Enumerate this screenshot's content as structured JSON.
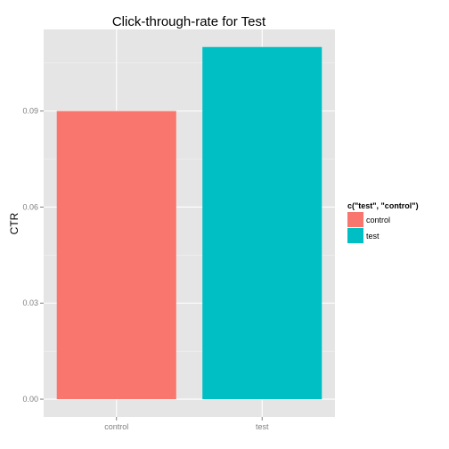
{
  "chart_data": {
    "type": "bar",
    "title": "Click-through-rate for Test",
    "xlabel": "",
    "ylabel": "CTR",
    "categories": [
      "control",
      "test"
    ],
    "values": [
      0.09,
      0.11
    ],
    "ylim": [
      -0.00555,
      0.1155
    ],
    "yticks": [
      0.0,
      0.03,
      0.06,
      0.09
    ],
    "ytick_labels": [
      "0.00",
      "0.03",
      "0.06",
      "0.09"
    ],
    "grid": true,
    "legend": {
      "title": "c(\"test\", \"control\")",
      "placement": "right",
      "entries": [
        {
          "label": "control",
          "color": "#F8766D"
        },
        {
          "label": "test",
          "color": "#00BFC4"
        }
      ]
    },
    "colors": {
      "control": "#F8766D",
      "test": "#00BFC4",
      "panel_background": "#E5E5E5",
      "grid_major": "#FFFFFF",
      "grid_minor": "#F2F2F2"
    }
  }
}
